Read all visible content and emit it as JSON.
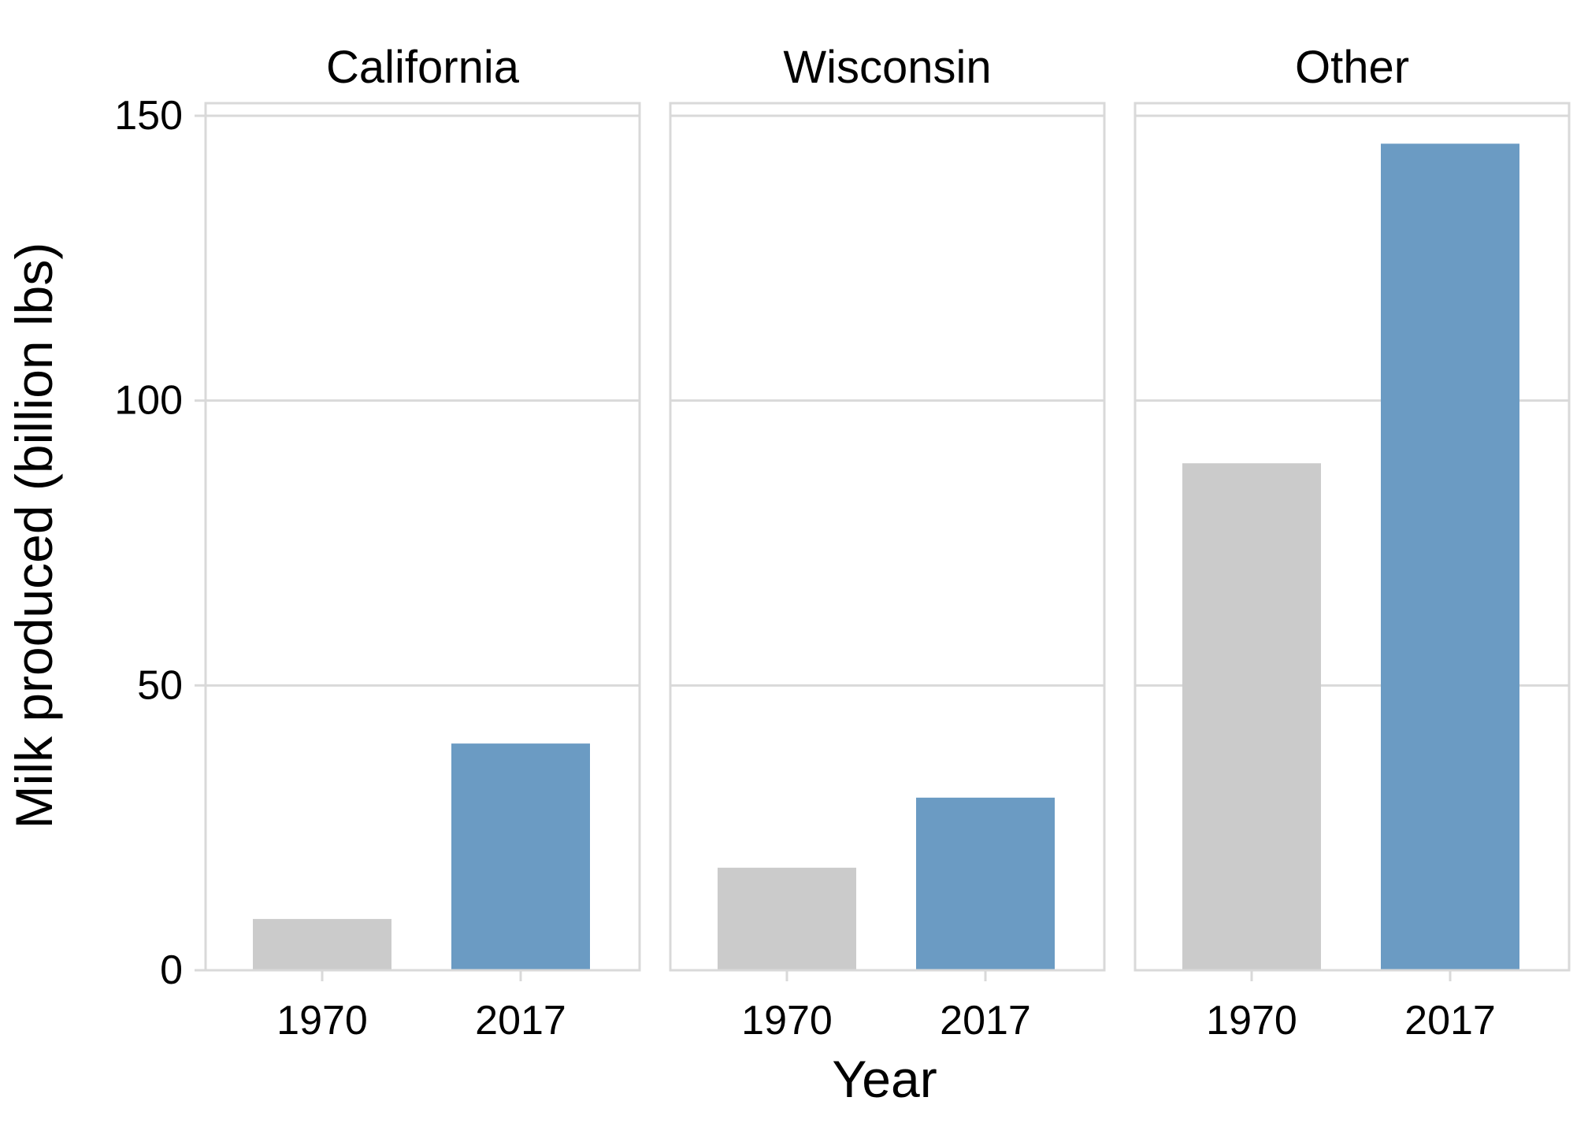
{
  "chart_data": {
    "type": "bar",
    "facets": [
      {
        "name": "California",
        "categories": [
          "1970",
          "2017"
        ],
        "values": [
          9,
          39.8
        ]
      },
      {
        "name": "Wisconsin",
        "categories": [
          "1970",
          "2017"
        ],
        "values": [
          18,
          30.3
        ]
      },
      {
        "name": "Other",
        "categories": [
          "1970",
          "2017"
        ],
        "values": [
          89,
          145.1
        ]
      }
    ],
    "xlabel": "Year",
    "ylabel": "Milk produced (billion lbs)",
    "ylim": [
      0,
      150
    ],
    "yticks": [
      "0",
      "50",
      "100",
      "150"
    ],
    "ytick_values": [
      0,
      50,
      100,
      150
    ],
    "bar_colors": {
      "1970": "#cbcbcb",
      "2017": "#6b9bc3"
    },
    "grid": true,
    "legend": "none"
  }
}
